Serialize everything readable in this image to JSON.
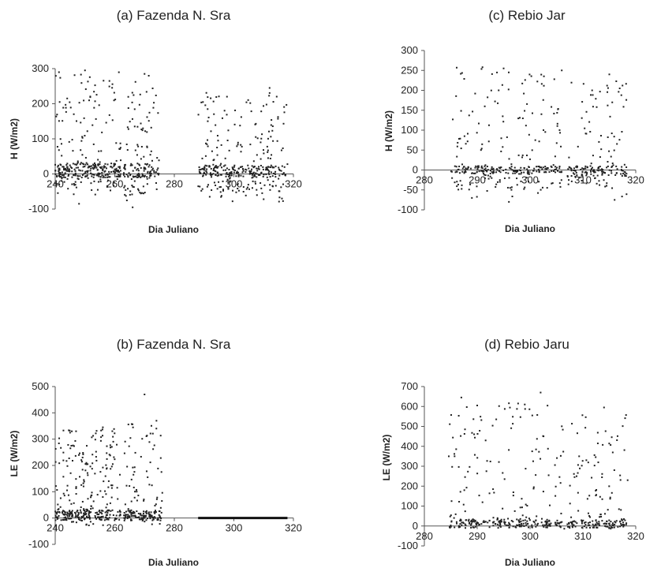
{
  "chart_data": [
    {
      "id": "a",
      "type": "scatter",
      "title": "(a) Fazenda N. Sra",
      "xlabel": "Dia Juliano",
      "ylabel": "H (W/m2)",
      "xlim": [
        240,
        320
      ],
      "ylim": [
        -100,
        300
      ],
      "xticks": [
        240,
        260,
        280,
        300,
        320
      ],
      "yticks": [
        -100,
        0,
        100,
        200,
        300
      ],
      "x_axis_at": 0,
      "segments": [
        {
          "x0": 240,
          "x1": 262,
          "n": 320,
          "spread": [
            -60,
            290
          ],
          "base": [
            -10,
            30
          ]
        },
        {
          "x0": 263,
          "x1": 275,
          "n": 160,
          "spread": [
            -90,
            280
          ],
          "base": [
            -10,
            30
          ]
        },
        {
          "x0": 288,
          "x1": 318,
          "n": 360,
          "spread": [
            -80,
            240
          ],
          "base": [
            -10,
            25
          ]
        }
      ],
      "highlights": [
        {
          "x": 250,
          "y": 295
        },
        {
          "x": 270,
          "y": 285
        },
        {
          "x": 312,
          "y": 245
        },
        {
          "x": 248,
          "y": -85
        },
        {
          "x": 266,
          "y": -95
        },
        {
          "x": 310,
          "y": -72
        }
      ]
    },
    {
      "id": "c",
      "type": "scatter",
      "title": "(c) Rebio Jar",
      "xlabel": "Dia Juliano",
      "ylabel": "H (W/m2)",
      "xlim": [
        280,
        320
      ],
      "ylim": [
        -100,
        300
      ],
      "xticks": [
        280,
        290,
        300,
        310,
        320
      ],
      "yticks": [
        -100,
        -50,
        0,
        50,
        100,
        150,
        200,
        250,
        300
      ],
      "x_axis_at": 0,
      "segments": [
        {
          "x0": 285,
          "x1": 306,
          "n": 300,
          "spread": [
            -80,
            260
          ],
          "base": [
            -10,
            10
          ]
        },
        {
          "x0": 307,
          "x1": 318.5,
          "n": 170,
          "spread": [
            -70,
            240
          ],
          "base": [
            -15,
            10
          ]
        }
      ],
      "highlights": [
        {
          "x": 291,
          "y": 258
        },
        {
          "x": 295,
          "y": 255
        },
        {
          "x": 306,
          "y": 250
        },
        {
          "x": 315,
          "y": 240
        },
        {
          "x": 296,
          "y": -80
        },
        {
          "x": 316,
          "y": -75
        }
      ]
    },
    {
      "id": "b",
      "type": "scatter",
      "title": "(b) Fazenda N. Sra",
      "xlabel": "Dia Juliano",
      "ylabel": "LE (W/m2)",
      "xlim": [
        240,
        320
      ],
      "ylim": [
        -100,
        500
      ],
      "xticks": [
        240,
        260,
        280,
        300,
        320
      ],
      "yticks": [
        -100,
        0,
        100,
        200,
        300,
        400,
        500
      ],
      "x_axis_at": 0,
      "segments": [
        {
          "x0": 240,
          "x1": 262,
          "n": 330,
          "spread": [
            -30,
            340
          ],
          "base": [
            -10,
            30
          ]
        },
        {
          "x0": 263,
          "x1": 276,
          "n": 170,
          "spread": [
            -30,
            370
          ],
          "base": [
            -10,
            30
          ]
        }
      ],
      "flatline": {
        "x0": 288,
        "x1": 318,
        "y": 0
      },
      "highlights": [
        {
          "x": 270,
          "y": 470
        },
        {
          "x": 274,
          "y": 370
        },
        {
          "x": 256,
          "y": 345
        },
        {
          "x": 247,
          "y": 330
        }
      ]
    },
    {
      "id": "d",
      "type": "scatter",
      "title": "(d) Rebio Jaru",
      "xlabel": "Dia Juliano",
      "ylabel": "LE (W/m2)",
      "xlim": [
        280,
        320
      ],
      "ylim": [
        -100,
        700
      ],
      "xticks": [
        280,
        290,
        300,
        310,
        320
      ],
      "yticks": [
        -100,
        0,
        100,
        200,
        300,
        400,
        500,
        600,
        700
      ],
      "x_axis_at": 0,
      "segments": [
        {
          "x0": 284.5,
          "x1": 306.5,
          "n": 300,
          "spread": [
            -20,
            620
          ],
          "base": [
            -10,
            30
          ]
        },
        {
          "x0": 307,
          "x1": 318.5,
          "n": 170,
          "spread": [
            -20,
            560
          ],
          "base": [
            -10,
            30
          ]
        }
      ],
      "highlights": [
        {
          "x": 302,
          "y": 670
        },
        {
          "x": 287,
          "y": 645
        },
        {
          "x": 314,
          "y": 595
        },
        {
          "x": 290,
          "y": 605
        },
        {
          "x": 299,
          "y": 610
        }
      ]
    }
  ]
}
